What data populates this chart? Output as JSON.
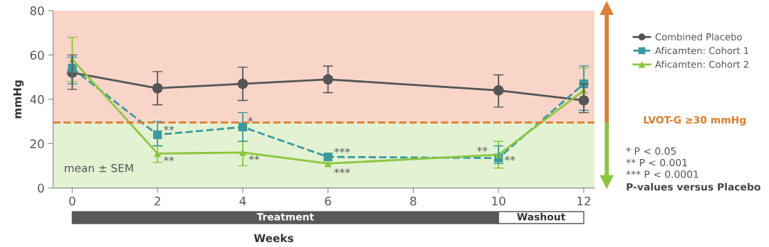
{
  "chart_data": {
    "type": "line",
    "xlabel": "Weeks",
    "ylabel": "mmHg",
    "x": [
      0,
      2,
      4,
      6,
      10,
      12
    ],
    "xlim": [
      -0.45,
      12.25
    ],
    "xticks": [
      0,
      2,
      4,
      6,
      8,
      10,
      12
    ],
    "ylim": [
      0,
      80
    ],
    "yticks": [
      0,
      20,
      40,
      60,
      80
    ],
    "series": [
      {
        "name": "Combined Placebo",
        "color": "#555555",
        "marker": "circle",
        "line_style": "solid",
        "values": [
          52,
          45,
          47,
          49,
          44,
          39.5
        ],
        "errors": [
          [
            44.5,
            60
          ],
          [
            37.5,
            52.5
          ],
          [
            39.5,
            54.5
          ],
          [
            43,
            55
          ],
          [
            36.5,
            51
          ],
          [
            34,
            47
          ]
        ]
      },
      {
        "name": "Aficamten: Cohort 1",
        "color": "#3a9a9e",
        "marker": "square",
        "line_style": "dashed",
        "values": [
          54,
          24,
          27.5,
          14,
          13.5,
          47
        ],
        "errors": [
          [
            47,
            59
          ],
          [
            19,
            30
          ],
          [
            21,
            34
          ],
          null,
          [
            11,
            19
          ],
          [
            35,
            55
          ]
        ]
      },
      {
        "name": "Aficamten: Cohort 2",
        "color": "#8cc63f",
        "marker": "triangle",
        "line_style": "solid",
        "values": [
          58,
          15.5,
          16,
          11,
          15,
          44
        ],
        "errors": [
          [
            48,
            68
          ],
          [
            11.5,
            19
          ],
          [
            10,
            21
          ],
          null,
          [
            9,
            21
          ],
          [
            34,
            54
          ]
        ]
      }
    ],
    "ref_lines": [
      {
        "axis": "y",
        "value": 29.5,
        "label": "LVOT-G ≥30 mmHg",
        "color": "#e07b2a",
        "line_style": "dashed"
      }
    ],
    "bands": [
      {
        "axis": "y",
        "from": 29.5,
        "to": 80,
        "color": "#f8d5c8"
      },
      {
        "axis": "y",
        "from": 0,
        "to": 29.5,
        "color": "#e2f2d2"
      }
    ],
    "legend": "right",
    "grid": false,
    "annotations": [
      {
        "text": "**",
        "x": 2,
        "y": 24
      },
      {
        "text": "**",
        "x": 2,
        "y": 15.5
      },
      {
        "text": "*",
        "x": 4,
        "y": 27.5
      },
      {
        "text": "**",
        "x": 4,
        "y": 16
      },
      {
        "text": "***",
        "x": 6,
        "y": 14
      },
      {
        "text": "***",
        "x": 6,
        "y": 11
      },
      {
        "text": "**",
        "x": 10,
        "y": 15
      },
      {
        "text": "**",
        "x": 10,
        "y": 13.5
      },
      "mean ± SEM",
      "Treatment",
      "Washout",
      "* P < 0.05",
      "** P < 0.001",
      "*** P < 0.0001",
      "P-values versus Placebo"
    ]
  }
}
